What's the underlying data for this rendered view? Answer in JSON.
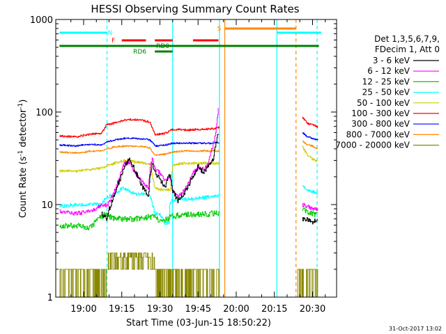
{
  "chart_data": {
    "type": "line",
    "title": "HESSI Observing Summary Count Rates",
    "xlabel": "Start Time (03-Jun-15 18:50:22)",
    "ylabel_main": "Count Rate (s",
    "ylabel_sup1": "-1",
    "ylabel_mid": " detector",
    "ylabel_sup2": "-1",
    "ylabel_end": ")",
    "footer_date": "31-Oct-2017 13:02",
    "y_scale": "log",
    "ylim": [
      1,
      1000
    ],
    "y_ticks": [
      {
        "value": 1,
        "label": "1"
      },
      {
        "value": 10,
        "label": "10"
      },
      {
        "value": 100,
        "label": "100"
      },
      {
        "value": 1000,
        "label": "1000"
      }
    ],
    "xlim_minutes": [
      -9.5,
      30
    ],
    "x_ticks": [
      {
        "value": 0,
        "label": "19:00"
      },
      {
        "value": 15,
        "label": "19:15"
      },
      {
        "value": 30,
        "label": "19:30"
      },
      {
        "value": 45,
        "label": "19:45"
      },
      {
        "value": 60,
        "label": "20:00"
      },
      {
        "value": 75,
        "label": "20:15"
      },
      {
        "value": 90,
        "label": "20:30"
      }
    ],
    "legend": {
      "header1": "Det 1,3,5,6,7,9,",
      "header2": "FDecim 1, Att 0",
      "entries": [
        {
          "label": "3 - 6 keV",
          "color": "#000000"
        },
        {
          "label": "6 - 12 keV",
          "color": "#ff00ff"
        },
        {
          "label": "12 - 25 keV",
          "color": "#00cc00"
        },
        {
          "label": "25 - 50 keV",
          "color": "#00ffff"
        },
        {
          "label": "50 - 100 keV",
          "color": "#cccc00"
        },
        {
          "label": "100 - 300 keV",
          "color": "#ff0000"
        },
        {
          "label": "300 - 800 keV",
          "color": "#0000ff"
        },
        {
          "label": "800 - 7000 keV",
          "color": "#ff8800"
        },
        {
          "label": "7000 - 20000 keV",
          "color": "#888800"
        }
      ]
    },
    "flag_labels": {
      "N": "N",
      "F": "F",
      "S": "S",
      "RD0": "RD0",
      "RD6": "RD6"
    },
    "flags": {
      "night": {
        "color": "#00ffff",
        "segments": [
          [
            -9.5,
            9.2
          ],
          [
            76,
            94
          ]
        ]
      },
      "flare": {
        "color": "#ff0000",
        "segments": [
          [
            15,
            24.5
          ],
          [
            28,
            35
          ],
          [
            43,
            53
          ]
        ]
      },
      "saa": {
        "color": "#ff8800",
        "segments": [
          [
            55.5,
            83.5
          ]
        ]
      },
      "rd0": {
        "color": "#008000",
        "segments": [
          [
            -9.5,
            92.5
          ]
        ]
      },
      "rd6": {
        "color": "#008000",
        "segments": [
          [
            28,
            35
          ]
        ]
      }
    },
    "vlines": [
      {
        "x": 9.2,
        "color": "#00ffff",
        "dash": true
      },
      {
        "x": 35,
        "color": "#00ffff",
        "dash": false
      },
      {
        "x": 53.4,
        "color": "#00ffff",
        "dash": false
      },
      {
        "x": 55.5,
        "color": "#ff8800",
        "dash": false
      },
      {
        "x": 76,
        "color": "#00ffff",
        "dash": false
      },
      {
        "x": 83.5,
        "color": "#ff8800",
        "dash": true
      },
      {
        "x": 91.8,
        "color": "#00ffff",
        "dash": true
      }
    ],
    "series": [
      {
        "name": "3 - 6 keV",
        "color": "#000000",
        "noise": 0.06,
        "segments": [
          [
            [
              7,
              8
            ],
            [
              9,
              7
            ],
            [
              10,
              9
            ],
            [
              12,
              13
            ],
            [
              14,
              18
            ],
            [
              16,
              26
            ],
            [
              18,
              31
            ],
            [
              20,
              24
            ],
            [
              22,
              18
            ],
            [
              24,
              14
            ],
            [
              25.5,
              13
            ],
            [
              26,
              20
            ],
            [
              27,
              28
            ],
            [
              28,
              22
            ],
            [
              30,
              19
            ],
            [
              32,
              15
            ],
            [
              33,
              20
            ],
            [
              34,
              21
            ],
            [
              35,
              14
            ],
            [
              37,
              11
            ],
            [
              40,
              14
            ],
            [
              43,
              20
            ],
            [
              45,
              26
            ],
            [
              47,
              22
            ],
            [
              49,
              26
            ],
            [
              51,
              31
            ],
            [
              52,
              48
            ],
            [
              53,
              60
            ]
          ],
          [
            [
              86,
              7
            ],
            [
              88,
              7
            ],
            [
              90,
              6.5
            ],
            [
              92,
              6.8
            ]
          ]
        ]
      },
      {
        "name": "6 - 12 keV",
        "color": "#ff00ff",
        "noise": 0.05,
        "segments": [
          [
            [
              -9.5,
              8.5
            ],
            [
              -3,
              8
            ],
            [
              3,
              8.5
            ],
            [
              7,
              10
            ],
            [
              9,
              9.8
            ],
            [
              10,
              10.5
            ],
            [
              12,
              14
            ],
            [
              14,
              20
            ],
            [
              16,
              28
            ],
            [
              18,
              29
            ],
            [
              20,
              22
            ],
            [
              22,
              19
            ],
            [
              24,
              16
            ],
            [
              25.5,
              15
            ],
            [
              26,
              24
            ],
            [
              27,
              32
            ],
            [
              28,
              24
            ],
            [
              30,
              22
            ],
            [
              32,
              18
            ],
            [
              34,
              20
            ],
            [
              35,
              14
            ],
            [
              37,
              12
            ],
            [
              40,
              15
            ],
            [
              43,
              22
            ],
            [
              45,
              25
            ],
            [
              47,
              24
            ],
            [
              49,
              27
            ],
            [
              50,
              38
            ],
            [
              51,
              45
            ],
            [
              52,
              62
            ],
            [
              53,
              120
            ]
          ],
          [
            [
              86,
              10
            ],
            [
              88,
              9.5
            ],
            [
              90,
              9
            ],
            [
              92,
              8.8
            ]
          ]
        ]
      },
      {
        "name": "12 - 25 keV",
        "color": "#00cc00",
        "noise": 0.07,
        "segments": [
          [
            [
              -9.5,
              5.8
            ],
            [
              -3,
              6
            ],
            [
              2,
              5.5
            ],
            [
              7,
              7.5
            ],
            [
              9,
              7.8
            ],
            [
              12,
              7
            ],
            [
              20,
              7
            ],
            [
              28,
              7.5
            ],
            [
              30,
              6.5
            ],
            [
              35,
              7.5
            ],
            [
              40,
              7.8
            ],
            [
              45,
              7.8
            ],
            [
              50,
              8
            ],
            [
              53.4,
              8
            ]
          ],
          [
            [
              86,
              8.8
            ],
            [
              88,
              8.5
            ],
            [
              90,
              8
            ],
            [
              92,
              7.8
            ]
          ]
        ]
      },
      {
        "name": "25 - 50 keV",
        "color": "#00ffff",
        "noise": 0.04,
        "segments": [
          [
            [
              -9.5,
              9.5
            ],
            [
              -3,
              10
            ],
            [
              3,
              10
            ],
            [
              7,
              10.2
            ],
            [
              9,
              12
            ],
            [
              12,
              13
            ],
            [
              15,
              15
            ],
            [
              18,
              14
            ],
            [
              20,
              13
            ],
            [
              24,
              13
            ],
            [
              26,
              12.5
            ],
            [
              28,
              8
            ],
            [
              30,
              7.8
            ],
            [
              32,
              6.2
            ],
            [
              33.5,
              6.3
            ],
            [
              34,
              11
            ],
            [
              38,
              11.5
            ],
            [
              43,
              11.5
            ],
            [
              48,
              12
            ],
            [
              53.4,
              12.5
            ]
          ],
          [
            [
              86,
              16
            ],
            [
              88,
              14
            ],
            [
              90,
              14
            ],
            [
              92,
              13
            ]
          ]
        ]
      },
      {
        "name": "50 - 100 keV",
        "color": "#cccc00",
        "noise": 0.03,
        "segments": [
          [
            [
              -9.5,
              23
            ],
            [
              -3,
              23
            ],
            [
              3,
              24
            ],
            [
              8,
              25
            ],
            [
              9,
              26
            ],
            [
              12,
              28
            ],
            [
              16,
              30
            ],
            [
              20,
              29
            ],
            [
              24,
              28
            ],
            [
              26,
              27
            ],
            [
              28,
              15
            ],
            [
              30,
              14.5
            ],
            [
              34,
              14.5
            ],
            [
              35,
              27
            ],
            [
              40,
              28
            ],
            [
              45,
              28
            ],
            [
              50,
              28
            ],
            [
              53.4,
              28
            ]
          ],
          [
            [
              86,
              42
            ],
            [
              88,
              34
            ],
            [
              90,
              31
            ],
            [
              92,
              29
            ]
          ]
        ]
      },
      {
        "name": "100 - 300 keV",
        "color": "#ff0000",
        "noise": 0.025,
        "segments": [
          [
            [
              -9.5,
              55
            ],
            [
              -3,
              54
            ],
            [
              3,
              58
            ],
            [
              7,
              59
            ],
            [
              9,
              73
            ],
            [
              12,
              76
            ],
            [
              16,
              82
            ],
            [
              20,
              83
            ],
            [
              24,
              80
            ],
            [
              26,
              78
            ],
            [
              28,
              57
            ],
            [
              32,
              59
            ],
            [
              35,
              65
            ],
            [
              40,
              64
            ],
            [
              45,
              65
            ],
            [
              50,
              66
            ],
            [
              53.4,
              68
            ]
          ],
          [
            [
              86,
              88
            ],
            [
              88,
              75
            ],
            [
              90,
              73
            ],
            [
              92,
              69
            ]
          ]
        ]
      },
      {
        "name": "300 - 800 keV",
        "color": "#0000ff",
        "noise": 0.02,
        "segments": [
          [
            [
              -9.5,
              44
            ],
            [
              -3,
              43
            ],
            [
              3,
              45
            ],
            [
              7,
              44
            ],
            [
              9,
              47
            ],
            [
              12,
              50
            ],
            [
              16,
              52
            ],
            [
              20,
              52
            ],
            [
              24,
              51
            ],
            [
              26,
              50
            ],
            [
              28,
              43
            ],
            [
              32,
              44
            ],
            [
              35,
              46
            ],
            [
              40,
              46
            ],
            [
              45,
              46
            ],
            [
              50,
              46
            ],
            [
              53.4,
              47
            ]
          ],
          [
            [
              86,
              60
            ],
            [
              88,
              54
            ],
            [
              90,
              52
            ],
            [
              92,
              50
            ]
          ]
        ]
      },
      {
        "name": "800 - 7000 keV",
        "color": "#ff8800",
        "noise": 0.02,
        "segments": [
          [
            [
              -9.5,
              37
            ],
            [
              -3,
              36
            ],
            [
              3,
              38
            ],
            [
              7,
              38
            ],
            [
              9,
              40
            ],
            [
              12,
              42
            ],
            [
              16,
              43
            ],
            [
              20,
              43
            ],
            [
              24,
              42
            ],
            [
              26,
              41
            ],
            [
              28,
              34
            ],
            [
              32,
              35
            ],
            [
              35,
              37
            ],
            [
              40,
              38
            ],
            [
              45,
              38
            ],
            [
              50,
              38
            ],
            [
              53.4,
              38
            ]
          ],
          [
            [
              86,
              48
            ],
            [
              88,
              44
            ],
            [
              90,
              43
            ],
            [
              92,
              40
            ]
          ]
        ]
      },
      {
        "name": "7000 - 20000 keV",
        "color": "#888800",
        "noise": 0,
        "segments": [
          [
            [
              -9.5,
              2
            ],
            [
              9,
              2
            ],
            [
              10,
              2.8
            ],
            [
              12,
              3
            ],
            [
              15,
              3.2
            ],
            [
              20,
              3.3
            ],
            [
              24,
              2.8
            ],
            [
              28,
              2.3
            ],
            [
              30,
              2.2
            ],
            [
              33,
              2.1
            ],
            [
              34,
              2
            ],
            [
              53.4,
              2
            ]
          ],
          [
            [
              84,
              2
            ],
            [
              88,
              2
            ],
            [
              90,
              2
            ],
            [
              92,
              1.4
            ]
          ]
        ]
      }
    ]
  }
}
